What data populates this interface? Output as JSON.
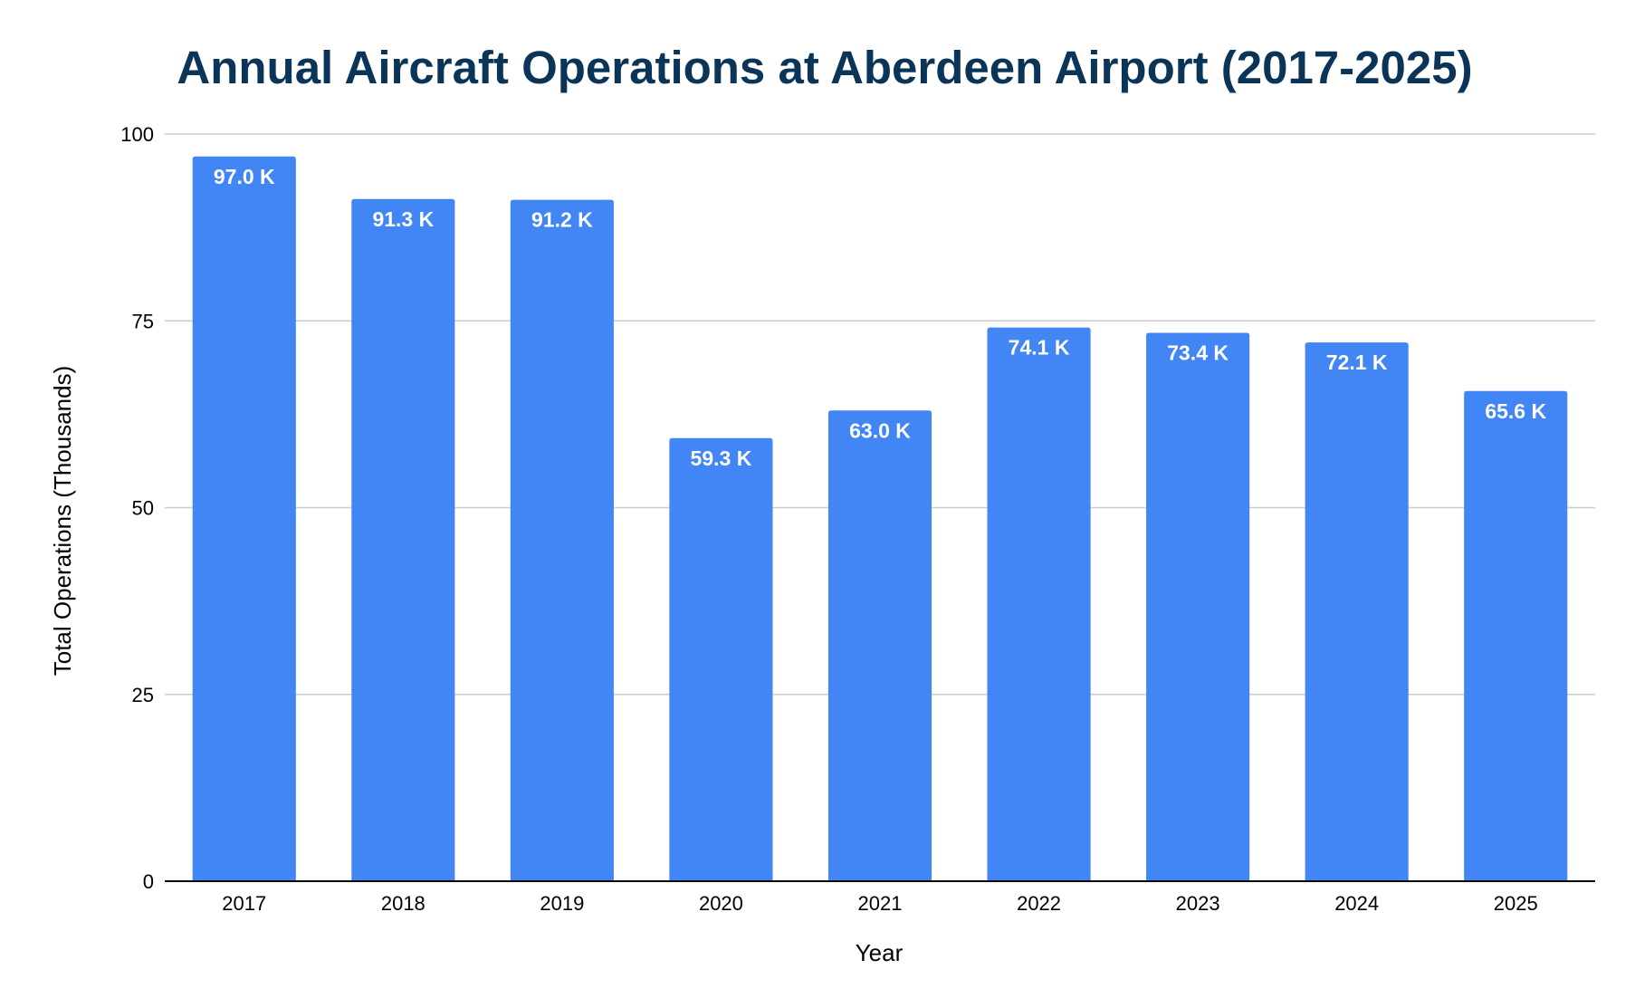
{
  "chart_data": {
    "type": "bar",
    "title": "Annual Aircraft Operations at Aberdeen Airport (2017-2025)",
    "xlabel": "Year",
    "ylabel": "Total Operations (Thousands)",
    "categories": [
      "2017",
      "2018",
      "2019",
      "2020",
      "2021",
      "2022",
      "2023",
      "2024",
      "2025"
    ],
    "values": [
      97.0,
      91.3,
      91.2,
      59.3,
      63.0,
      74.1,
      73.4,
      72.1,
      65.6
    ],
    "data_labels": [
      "97.0 K",
      "91.3 K",
      "91.2 K",
      "59.3 K",
      "63.0 K",
      "74.1 K",
      "73.4 K",
      "72.1 K",
      "65.6 K"
    ],
    "ylim": [
      0,
      100
    ],
    "yticks": [
      "0",
      "25",
      "50",
      "75",
      "100"
    ],
    "grid": true,
    "legend": "none"
  },
  "colors": {
    "bar": "#4285F4",
    "title": "#0B3558",
    "grid": "#CCCCCC",
    "axis": "#000000",
    "label": "#FFFFFF"
  }
}
